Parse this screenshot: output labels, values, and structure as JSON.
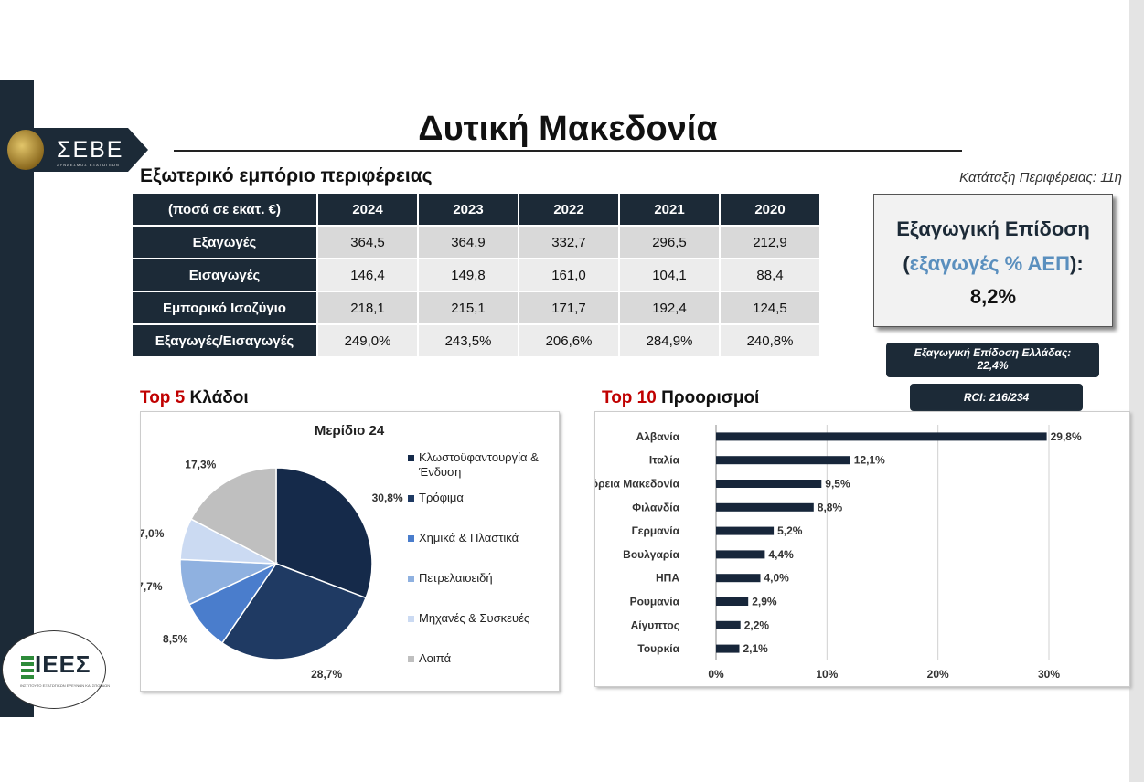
{
  "page": {
    "title": "Δυτική Μακεδονία",
    "section_title": "Εξωτερικό εμπόριο περιφέρειας",
    "rank_text": "Κατάταξη Περιφέρειας: 11η",
    "logo_text": "ΣΕΒΕ",
    "logo_sub": "ΣΥΝΔΕΣΜΟΣ ΕΞΑΓΩΓΕΩΝ",
    "iees_text": "ΙΕΕΣ",
    "iees_sub": "ΙΝΣΤΙΤΟΥΤΟ ΕΞΑΓΩΓΙΚΩΝ ΕΡΕΥΝΩΝ ΚΑΙ ΣΠΟΥΔΩΝ"
  },
  "trade_table": {
    "header": [
      "(ποσά σε εκατ. €)",
      "2024",
      "2023",
      "2022",
      "2021",
      "2020"
    ],
    "rows": [
      {
        "label": "Εξαγωγές",
        "values": [
          "364,5",
          "364,9",
          "332,7",
          "296,5",
          "212,9"
        ]
      },
      {
        "label": "Εισαγωγές",
        "values": [
          "146,4",
          "149,8",
          "161,0",
          "104,1",
          "88,4"
        ]
      },
      {
        "label": "Εμπορικό Ισοζύγιο",
        "values": [
          "218,1",
          "215,1",
          "171,7",
          "192,4",
          "124,5"
        ]
      },
      {
        "label": "Εξαγωγές/Εισαγωγές",
        "values": [
          "249,0%",
          "243,5%",
          "206,6%",
          "284,9%",
          "240,8%"
        ]
      }
    ]
  },
  "performance": {
    "line1": "Εξαγωγική Επίδοση",
    "open": "(",
    "highlight": "εξαγωγές % ΑΕΠ",
    "close": "):",
    "value": "8,2%",
    "greece_label": "Εξαγωγική Επίδοση Ελλάδας:",
    "greece_value": "22,4%",
    "rci": "RCI: 216/234"
  },
  "pie_heading": {
    "prefix": "Top 5",
    "rest": " Κλάδοι"
  },
  "bar_heading": {
    "prefix": "Top 10",
    "rest": " Προορισμοί"
  },
  "colors": {
    "navy": "#1c2a37",
    "heading_red": "#c00000",
    "highlight_blue": "#5a8fbe",
    "bar": "#17263a"
  },
  "chart_data": [
    {
      "type": "pie",
      "title": "Μερίδιο 24",
      "legend_position": "right",
      "slices": [
        {
          "label": "Κλωστοϋφαντουργία & Ένδυση",
          "value": 30.8,
          "value_label": "30,8%",
          "color": "#152a4a"
        },
        {
          "label": "Τρόφιμα",
          "value": 28.7,
          "value_label": "28,7%",
          "color": "#1f3a63"
        },
        {
          "label": "Χημικά & Πλαστικά",
          "value": 8.5,
          "value_label": "8,5%",
          "color": "#4a7dcc"
        },
        {
          "label": "Πετρελαιοειδή",
          "value": 7.7,
          "value_label": "7,7%",
          "color": "#8fb1e0"
        },
        {
          "label": "Μηχανές & Συσκευές",
          "value": 7.0,
          "value_label": "7,0%",
          "color": "#cbdaf2"
        },
        {
          "label": "Λοιπά",
          "value": 17.3,
          "value_label": "17,3%",
          "color": "#bfbfbf"
        }
      ]
    },
    {
      "type": "bar",
      "orientation": "horizontal",
      "categories": [
        "Αλβανία",
        "Ιταλία",
        "Βόρεια Μακεδονία",
        "Φιλανδία",
        "Γερμανία",
        "Βουλγαρία",
        "ΗΠΑ",
        "Ρουμανία",
        "Αίγυπτος",
        "Τουρκία"
      ],
      "values": [
        29.8,
        12.1,
        9.5,
        8.8,
        5.2,
        4.4,
        4.0,
        2.9,
        2.2,
        2.1
      ],
      "value_labels": [
        "29,8%",
        "12,1%",
        "9,5%",
        "8,8%",
        "5,2%",
        "4,4%",
        "4,0%",
        "2,9%",
        "2,2%",
        "2,1%"
      ],
      "xlim": [
        0,
        30
      ],
      "xticks": [
        0,
        10,
        20,
        30
      ],
      "xtick_labels": [
        "0%",
        "10%",
        "20%",
        "30%"
      ],
      "grid": true
    }
  ]
}
